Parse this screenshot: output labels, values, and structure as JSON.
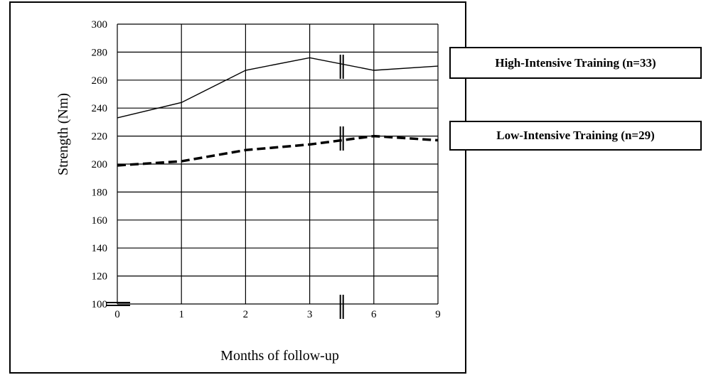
{
  "chart_data": {
    "type": "line",
    "title": "",
    "xlabel": "Months of follow-up",
    "ylabel": "Strength (Nm)",
    "x_ticks": [
      "0",
      "1",
      "2",
      "3",
      "6",
      "9"
    ],
    "ylim": [
      100,
      300
    ],
    "y_ticks": [
      100,
      120,
      140,
      160,
      180,
      200,
      220,
      240,
      260,
      280,
      300
    ],
    "grid": true,
    "axis_breaks": [
      "y-axis below 100",
      "x-axis between 3 and 6"
    ],
    "series": [
      {
        "name": "High-Intensive Training (n=33)",
        "x": [
          "0",
          "1",
          "2",
          "3",
          "6",
          "9"
        ],
        "values": [
          233,
          244,
          267,
          276,
          267,
          270
        ],
        "style": "solid",
        "color": "#000000"
      },
      {
        "name": "Low-Intensive Training (n=29)",
        "x": [
          "0",
          "1",
          "2",
          "3",
          "6",
          "9"
        ],
        "values": [
          199,
          202,
          210,
          214,
          220,
          217
        ],
        "style": "dashed",
        "color": "#000000"
      }
    ]
  }
}
